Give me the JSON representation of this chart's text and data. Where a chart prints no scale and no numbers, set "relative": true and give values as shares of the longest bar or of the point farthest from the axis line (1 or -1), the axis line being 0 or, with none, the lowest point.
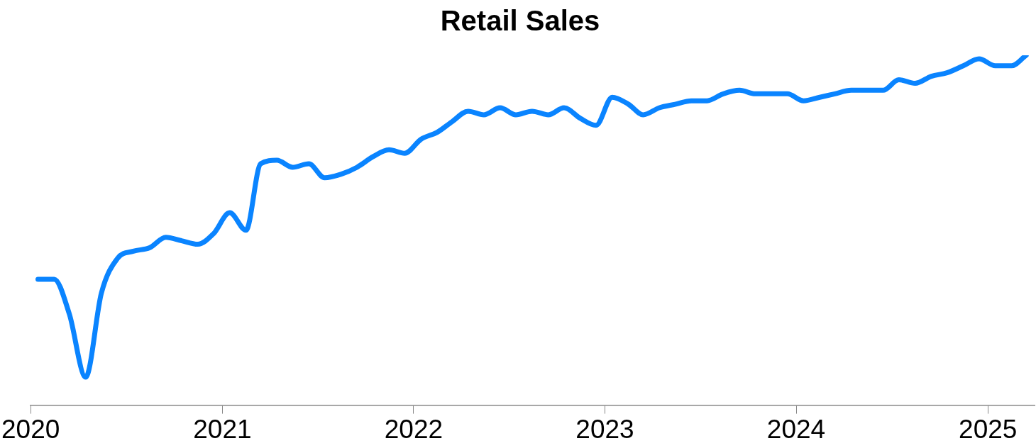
{
  "chart_data": {
    "type": "line",
    "title": "Retail Sales",
    "relative": true,
    "x": [
      "2020-01-15",
      "2020-02-15",
      "2020-03-15",
      "2020-04-15",
      "2020-05-15",
      "2020-06-15",
      "2020-07-15",
      "2020-08-15",
      "2020-09-15",
      "2020-10-15",
      "2020-11-15",
      "2020-12-15",
      "2021-01-15",
      "2021-02-15",
      "2021-03-15",
      "2021-04-15",
      "2021-05-15",
      "2021-06-15",
      "2021-07-15",
      "2021-08-15",
      "2021-09-15",
      "2021-10-15",
      "2021-11-15",
      "2021-12-15",
      "2022-01-15",
      "2022-02-15",
      "2022-03-15",
      "2022-04-15",
      "2022-05-15",
      "2022-06-15",
      "2022-07-15",
      "2022-08-15",
      "2022-09-15",
      "2022-10-15",
      "2022-11-15",
      "2022-12-15",
      "2023-01-15",
      "2023-02-15",
      "2023-03-15",
      "2023-04-15",
      "2023-05-15",
      "2023-06-15",
      "2023-07-15",
      "2023-08-15",
      "2023-09-15",
      "2023-10-15",
      "2023-11-15",
      "2023-12-15",
      "2024-01-15",
      "2024-02-15",
      "2024-03-15",
      "2024-04-15",
      "2024-05-15",
      "2024-06-15",
      "2024-07-15",
      "2024-08-15",
      "2024-09-15",
      "2024-10-15",
      "2024-11-15",
      "2024-12-15",
      "2025-01-15",
      "2025-02-15",
      "2025-03-15"
    ],
    "series": [
      {
        "color": "#0a84ff",
        "values": [
          0.36,
          0.36,
          0.26,
          0.08,
          0.32,
          0.42,
          0.44,
          0.45,
          0.48,
          0.47,
          0.46,
          0.49,
          0.55,
          0.5,
          0.69,
          0.7,
          0.68,
          0.69,
          0.65,
          0.66,
          0.68,
          0.71,
          0.73,
          0.72,
          0.76,
          0.78,
          0.81,
          0.84,
          0.83,
          0.85,
          0.83,
          0.84,
          0.83,
          0.85,
          0.82,
          0.8,
          0.88,
          0.86,
          0.83,
          0.85,
          0.86,
          0.87,
          0.87,
          0.89,
          0.9,
          0.89,
          0.89,
          0.89,
          0.87,
          0.88,
          0.89,
          0.9,
          0.9,
          0.9,
          0.93,
          0.92,
          0.94,
          0.95,
          0.97,
          0.99,
          0.97,
          0.97,
          1
        ]
      }
    ],
    "xlim": [
      "2020-01-01",
      "2025-03-31"
    ],
    "xticks": [
      "2020",
      "2021",
      "2022",
      "2023",
      "2024",
      "2025"
    ],
    "grid": false,
    "legend": false,
    "marker": "none",
    "line_style": "solid"
  }
}
